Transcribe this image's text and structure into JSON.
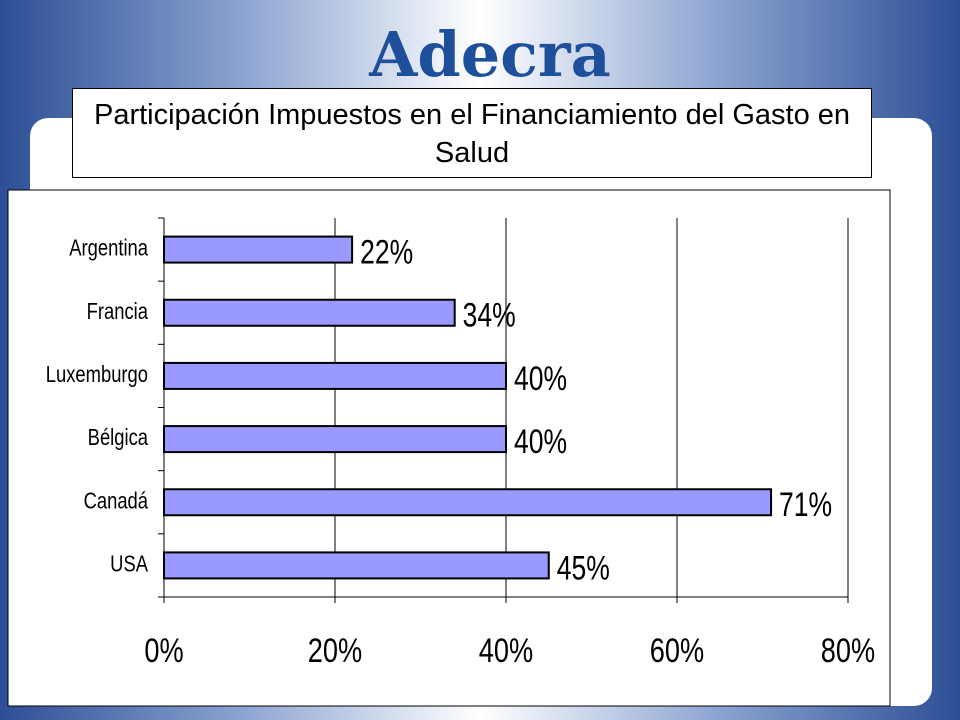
{
  "logo": "Adecra",
  "chart_data": {
    "type": "hbar",
    "title": "Participación Impuestos en el Financiamiento del Gasto en Salud",
    "categories": [
      "Argentina",
      "Francia",
      "Luxemburgo",
      "Bélgica",
      "Canadá",
      "USA"
    ],
    "values": [
      22,
      34,
      40,
      40,
      71,
      45
    ],
    "value_labels": [
      "22%",
      "34%",
      "40%",
      "40%",
      "71%",
      "45%"
    ],
    "color": "#9999ff",
    "xlim": [
      0,
      80
    ],
    "xticks": [
      {
        "value": 0,
        "label": "0%"
      },
      {
        "value": 20,
        "label": "20%"
      },
      {
        "value": 40,
        "label": "40%"
      },
      {
        "value": 60,
        "label": "60%"
      },
      {
        "value": 80,
        "label": "80%"
      }
    ],
    "grid": true
  }
}
